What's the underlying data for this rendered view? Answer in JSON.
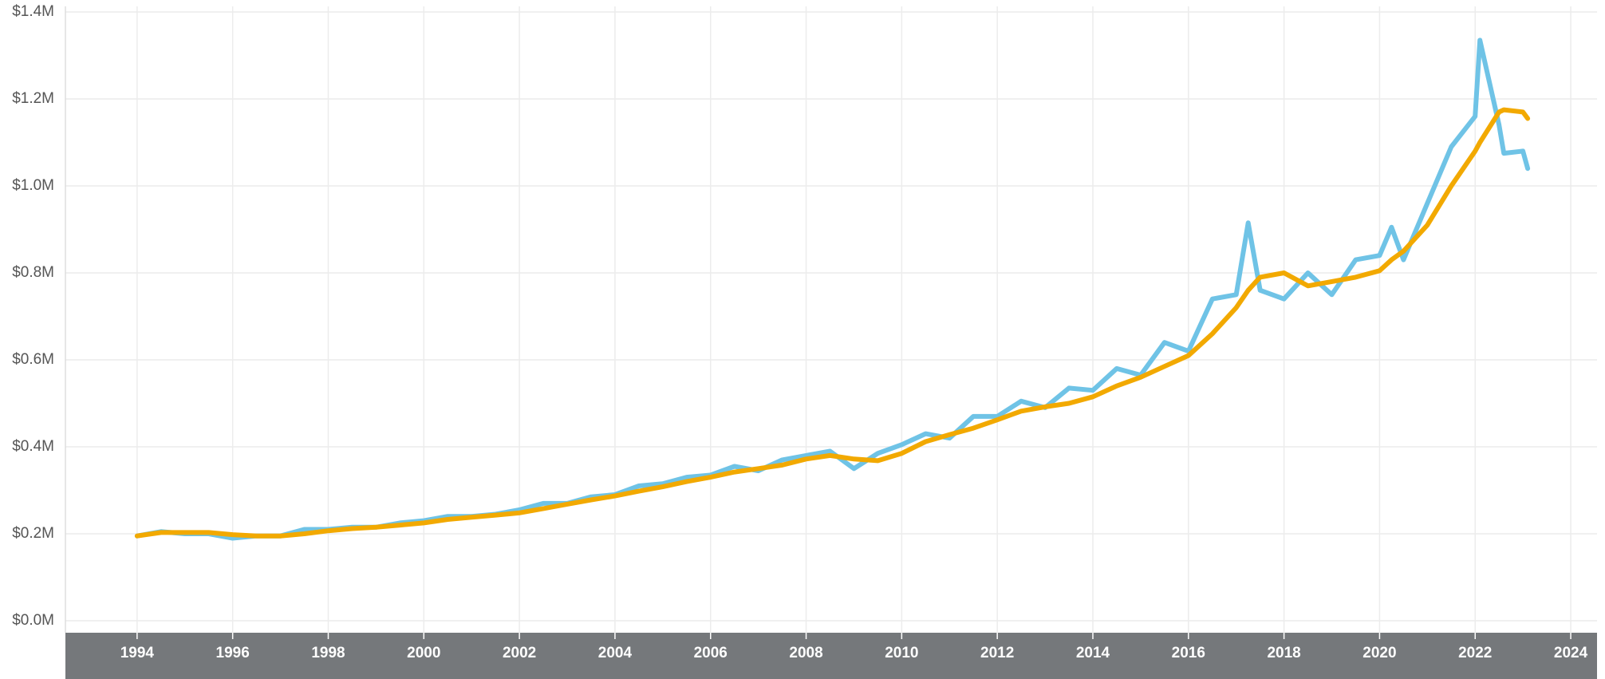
{
  "chart_data": {
    "type": "line",
    "x": [
      1994,
      1994.5,
      1995,
      1995.5,
      1996,
      1996.5,
      1997,
      1997.5,
      1998,
      1998.5,
      1999,
      1999.5,
      2000,
      2000.5,
      2001,
      2001.5,
      2002,
      2002.5,
      2003,
      2003.5,
      2004,
      2004.5,
      2005,
      2005.5,
      2006,
      2006.5,
      2007,
      2007.5,
      2008,
      2008.5,
      2009,
      2009.5,
      2010,
      2010.5,
      2011,
      2011.5,
      2012,
      2012.5,
      2013,
      2013.5,
      2014,
      2014.5,
      2015,
      2015.5,
      2016,
      2016.5,
      2017,
      2017.25,
      2017.5,
      2018,
      2018.5,
      2019,
      2019.5,
      2020,
      2020.25,
      2020.5,
      2021,
      2021.5,
      2022,
      2022.1,
      2022.5,
      2022.6,
      2023,
      2023.1
    ],
    "series": [
      {
        "color": "#6fc3e6",
        "values": [
          195000,
          205000,
          200000,
          200000,
          190000,
          195000,
          195000,
          210000,
          210000,
          215000,
          215000,
          225000,
          230000,
          240000,
          240000,
          245000,
          255000,
          270000,
          270000,
          285000,
          290000,
          310000,
          315000,
          330000,
          335000,
          355000,
          345000,
          370000,
          380000,
          390000,
          350000,
          385000,
          405000,
          430000,
          420000,
          470000,
          470000,
          505000,
          490000,
          535000,
          530000,
          580000,
          565000,
          640000,
          620000,
          740000,
          750000,
          915000,
          760000,
          740000,
          800000,
          750000,
          830000,
          840000,
          905000,
          830000,
          960000,
          1090000,
          1160000,
          1335000,
          1140000,
          1075000,
          1080000,
          1040000
        ]
      },
      {
        "color": "#f2a900",
        "values": [
          195000,
          203000,
          203000,
          203000,
          198000,
          195000,
          195000,
          200000,
          207000,
          212000,
          215000,
          220000,
          225000,
          233000,
          238000,
          243000,
          248000,
          258000,
          268000,
          278000,
          287000,
          298000,
          308000,
          320000,
          330000,
          342000,
          350000,
          358000,
          372000,
          380000,
          372000,
          368000,
          385000,
          412000,
          428000,
          443000,
          462000,
          482000,
          492000,
          500000,
          515000,
          540000,
          560000,
          585000,
          610000,
          660000,
          720000,
          760000,
          790000,
          800000,
          770000,
          780000,
          790000,
          805000,
          830000,
          850000,
          910000,
          1000000,
          1080000,
          1100000,
          1170000,
          1175000,
          1170000,
          1155000
        ]
      }
    ],
    "xlim": [
      1992.5,
      2024.55
    ],
    "xticks": [
      1994,
      1996,
      1998,
      2000,
      2002,
      2004,
      2006,
      2008,
      2010,
      2012,
      2014,
      2016,
      2018,
      2020,
      2022,
      2024
    ],
    "ylim": [
      0,
      1400000
    ],
    "yticks": [
      {
        "value": 0,
        "label": "$0.0M"
      },
      {
        "value": 200000,
        "label": "$0.2M"
      },
      {
        "value": 400000,
        "label": "$0.4M"
      },
      {
        "value": 600000,
        "label": "$0.6M"
      },
      {
        "value": 800000,
        "label": "$0.8M"
      },
      {
        "value": 1000000,
        "label": "$1.0M"
      },
      {
        "value": 1200000,
        "label": "$1.2M"
      },
      {
        "value": 1400000,
        "label": "$1.4M"
      }
    ],
    "grid": true
  }
}
